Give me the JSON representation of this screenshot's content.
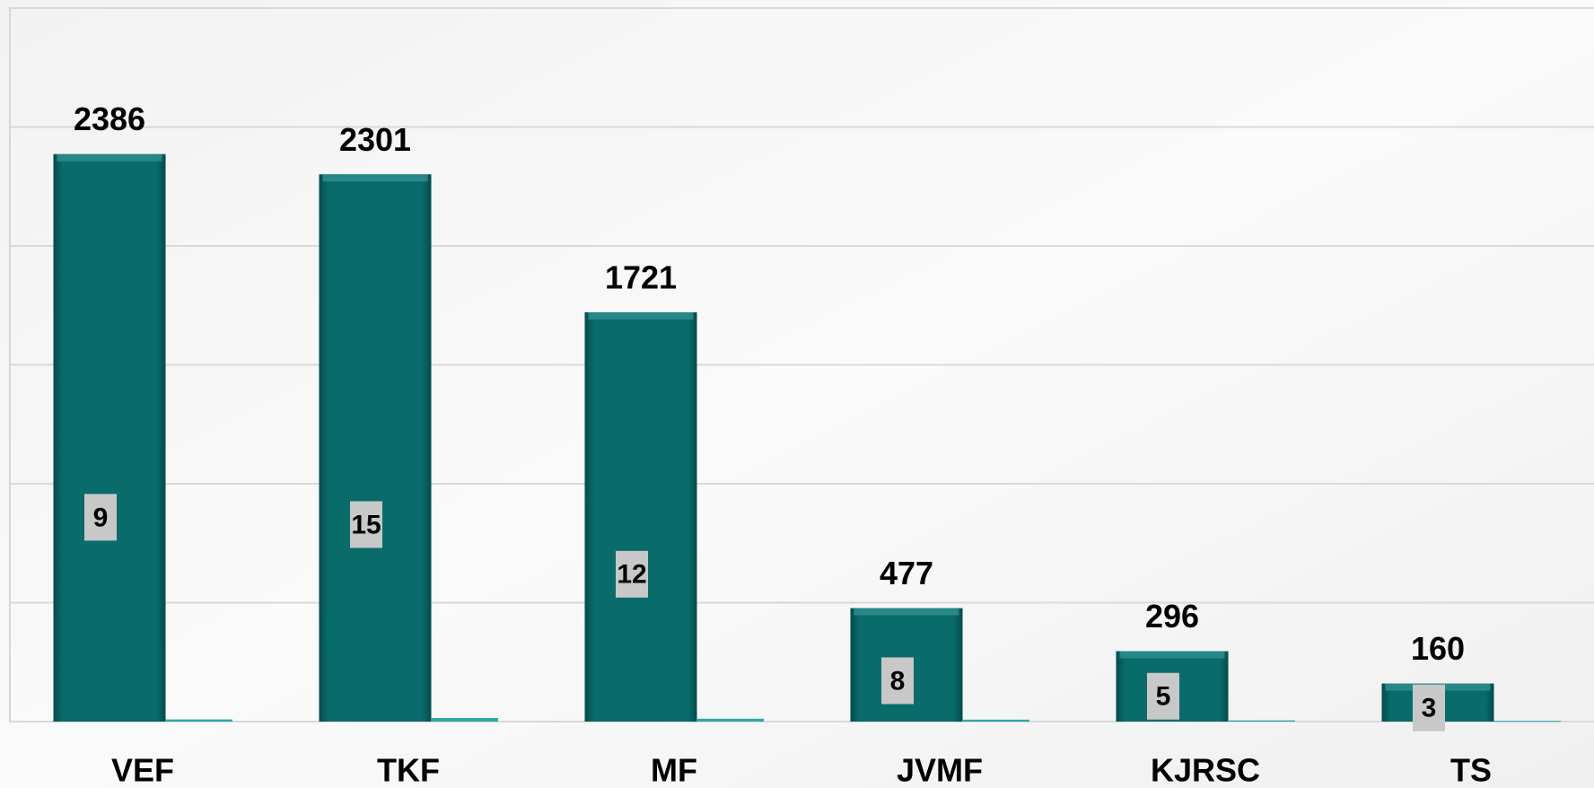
{
  "chart_data": {
    "type": "bar",
    "categories": [
      "VEF",
      "TKF",
      "MF",
      "JVMF",
      "KJRSC",
      "TS"
    ],
    "series": [
      {
        "color": "#0a6b6b",
        "values": [
          2386,
          2301,
          1721,
          477,
          296,
          160
        ]
      },
      {
        "color": "#2aa8a8",
        "values": [
          9,
          15,
          12,
          8,
          5,
          3
        ]
      }
    ],
    "ylim": [
      0,
      3000
    ],
    "yticks": [
      0,
      500,
      1000,
      1500,
      2000,
      2500,
      3000
    ],
    "grid": true
  }
}
